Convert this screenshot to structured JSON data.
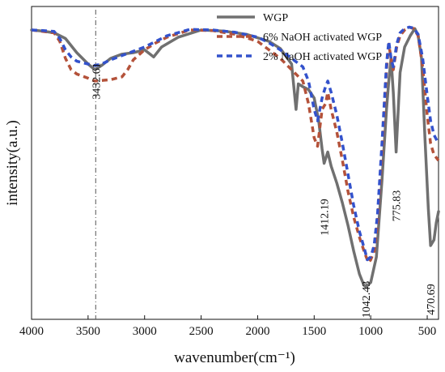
{
  "chart_data": {
    "type": "line",
    "title": "",
    "xlabel": "wavenumber(cm⁻¹)",
    "ylabel": "intensity(a.u.)",
    "x_reversed": true,
    "xlim": [
      4000,
      400
    ],
    "ylim": [
      0,
      100
    ],
    "x_ticks": [
      4000,
      3500,
      3000,
      2500,
      2000,
      1500,
      1000,
      500
    ],
    "y_ticks_shown": false,
    "grid": false,
    "legend_position": "top-right",
    "series": [
      {
        "name": "WGP",
        "color": "#707070",
        "dash": "solid",
        "points": [
          [
            4000,
            98
          ],
          [
            3900,
            97.6
          ],
          [
            3800,
            97
          ],
          [
            3700,
            95
          ],
          [
            3600,
            90
          ],
          [
            3500,
            86
          ],
          [
            3440,
            84
          ],
          [
            3380,
            85.5
          ],
          [
            3300,
            88
          ],
          [
            3200,
            89.5
          ],
          [
            3100,
            90
          ],
          [
            3000,
            91
          ],
          [
            2920,
            88.5
          ],
          [
            2850,
            92
          ],
          [
            2700,
            95.5
          ],
          [
            2500,
            98
          ],
          [
            2300,
            97.6
          ],
          [
            2100,
            96.5
          ],
          [
            1900,
            94
          ],
          [
            1800,
            91.5
          ],
          [
            1700,
            86
          ],
          [
            1660,
            70
          ],
          [
            1640,
            79
          ],
          [
            1600,
            78
          ],
          [
            1550,
            77
          ],
          [
            1500,
            74
          ],
          [
            1460,
            66
          ],
          [
            1430,
            56
          ],
          [
            1412,
            51
          ],
          [
            1380,
            55
          ],
          [
            1350,
            50
          ],
          [
            1300,
            44
          ],
          [
            1250,
            37
          ],
          [
            1200,
            29
          ],
          [
            1150,
            20
          ],
          [
            1100,
            12
          ],
          [
            1060,
            8
          ],
          [
            1042,
            7.5
          ],
          [
            1000,
            9
          ],
          [
            950,
            18
          ],
          [
            900,
            45
          ],
          [
            860,
            70
          ],
          [
            840,
            80
          ],
          [
            820,
            88
          ],
          [
            800,
            76
          ],
          [
            775,
            55
          ],
          [
            740,
            83
          ],
          [
            700,
            92
          ],
          [
            650,
            96
          ],
          [
            610,
            98.5
          ],
          [
            580,
            96
          ],
          [
            550,
            88
          ],
          [
            520,
            60
          ],
          [
            490,
            35
          ],
          [
            470,
            22
          ],
          [
            440,
            24
          ],
          [
            420,
            30
          ],
          [
            400,
            34
          ]
        ]
      },
      {
        "name": "6% NaOH activated WGP",
        "color": "#B4523A",
        "dash": "dashed",
        "points": [
          [
            4000,
            98
          ],
          [
            3900,
            97.5
          ],
          [
            3800,
            97
          ],
          [
            3750,
            94
          ],
          [
            3700,
            88
          ],
          [
            3650,
            84
          ],
          [
            3600,
            82.5
          ],
          [
            3500,
            81
          ],
          [
            3440,
            80
          ],
          [
            3380,
            80.2
          ],
          [
            3300,
            80.5
          ],
          [
            3200,
            81.5
          ],
          [
            3150,
            84
          ],
          [
            3100,
            87.5
          ],
          [
            3000,
            91
          ],
          [
            2900,
            93.5
          ],
          [
            2800,
            95.5
          ],
          [
            2600,
            98
          ],
          [
            2400,
            97.8
          ],
          [
            2200,
            96.5
          ],
          [
            2000,
            94
          ],
          [
            1900,
            91
          ],
          [
            1800,
            88
          ],
          [
            1700,
            84
          ],
          [
            1600,
            80
          ],
          [
            1550,
            72
          ],
          [
            1500,
            60
          ],
          [
            1470,
            57
          ],
          [
            1430,
            70
          ],
          [
            1400,
            72
          ],
          [
            1380,
            76
          ],
          [
            1350,
            70
          ],
          [
            1300,
            62
          ],
          [
            1250,
            52
          ],
          [
            1200,
            41
          ],
          [
            1150,
            32
          ],
          [
            1100,
            25
          ],
          [
            1050,
            19
          ],
          [
            1020,
            16
          ],
          [
            1000,
            17
          ],
          [
            970,
            20
          ],
          [
            940,
            30
          ],
          [
            900,
            55
          ],
          [
            860,
            84
          ],
          [
            840,
            93
          ],
          [
            820,
            88
          ],
          [
            800,
            84
          ],
          [
            770,
            92
          ],
          [
            740,
            96
          ],
          [
            700,
            98
          ],
          [
            660,
            99
          ],
          [
            620,
            98.5
          ],
          [
            580,
            96
          ],
          [
            540,
            85
          ],
          [
            500,
            68
          ],
          [
            470,
            58
          ],
          [
            440,
            54
          ],
          [
            400,
            52
          ]
        ]
      },
      {
        "name": "2% NaOH activated WGP",
        "color": "#3352CC",
        "dash": "dashed",
        "points": [
          [
            4000,
            98
          ],
          [
            3900,
            97.8
          ],
          [
            3800,
            97.5
          ],
          [
            3750,
            95
          ],
          [
            3700,
            91
          ],
          [
            3650,
            88.5
          ],
          [
            3600,
            87
          ],
          [
            3500,
            86
          ],
          [
            3440,
            85.5
          ],
          [
            3380,
            86
          ],
          [
            3300,
            87.5
          ],
          [
            3200,
            89
          ],
          [
            3100,
            90.5
          ],
          [
            3000,
            92
          ],
          [
            2900,
            94
          ],
          [
            2800,
            96
          ],
          [
            2600,
            98.2
          ],
          [
            2400,
            98
          ],
          [
            2200,
            97.2
          ],
          [
            2000,
            95.5
          ],
          [
            1900,
            93.5
          ],
          [
            1800,
            91
          ],
          [
            1700,
            88
          ],
          [
            1600,
            85
          ],
          [
            1550,
            80
          ],
          [
            1500,
            70
          ],
          [
            1470,
            66
          ],
          [
            1430,
            74
          ],
          [
            1400,
            78
          ],
          [
            1380,
            80
          ],
          [
            1350,
            76
          ],
          [
            1300,
            68
          ],
          [
            1250,
            58
          ],
          [
            1200,
            47
          ],
          [
            1150,
            36
          ],
          [
            1100,
            27
          ],
          [
            1050,
            20
          ],
          [
            1030,
            17
          ],
          [
            1000,
            18
          ],
          [
            970,
            22
          ],
          [
            940,
            33
          ],
          [
            900,
            58
          ],
          [
            860,
            86
          ],
          [
            840,
            94
          ],
          [
            820,
            88
          ],
          [
            800,
            85
          ],
          [
            770,
            93
          ],
          [
            740,
            97
          ],
          [
            700,
            98.5
          ],
          [
            660,
            99
          ],
          [
            620,
            98.7
          ],
          [
            580,
            96.5
          ],
          [
            540,
            88
          ],
          [
            500,
            75
          ],
          [
            470,
            66
          ],
          [
            440,
            61
          ],
          [
            400,
            58
          ]
        ]
      }
    ],
    "annotations": [
      {
        "text": "3432.61",
        "x": 3432.61,
        "y": 80,
        "vertical_line": true
      },
      {
        "text": "1412.19",
        "x": 1412.19,
        "y": 32
      },
      {
        "text": "1042.43",
        "x": 1042.43,
        "y": 3
      },
      {
        "text": "775.83",
        "x": 775.83,
        "y": 36
      },
      {
        "text": "470.69",
        "x": 470.69,
        "y": 3
      }
    ]
  }
}
